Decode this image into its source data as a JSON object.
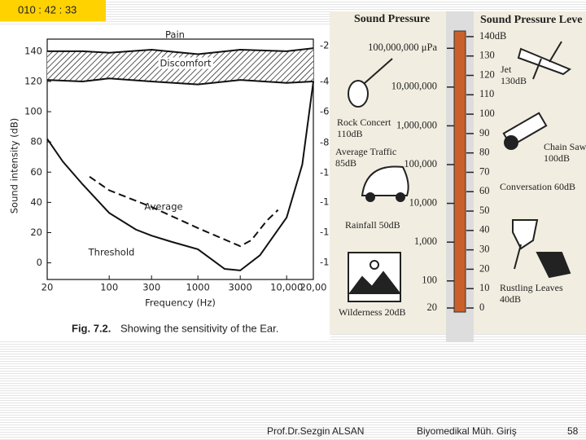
{
  "timer": "010 : 42 : 33",
  "chart_data": {
    "type": "line",
    "ylabel": "Sound intensity (dB)",
    "xlabel": "Frequency (Hz)",
    "caption_label": "Fig. 7.2.",
    "caption": "Showing the sensitivity of the Ear.",
    "log_x": true,
    "xlim": [
      20,
      20000
    ],
    "xticks": [
      20,
      100,
      300,
      1000,
      3000,
      {
        "value": 10000,
        "label": "10,000"
      },
      {
        "value": 20000,
        "label": "20,00"
      }
    ],
    "ylim": [
      -11,
      148
    ],
    "yticks": [
      0,
      20,
      40,
      60,
      80,
      100,
      120,
      140
    ],
    "right_axis_labels": [
      "-2",
      "-4",
      "-6",
      "-8",
      "-1",
      "-1",
      "-1",
      "-1"
    ],
    "series": [
      {
        "name": "Pain",
        "color": "#111",
        "fill": "hatch",
        "x": [
          20,
          50,
          100,
          300,
          1000,
          3000,
          10000,
          20000
        ],
        "values": [
          140,
          140,
          139,
          141,
          138,
          141,
          140,
          142
        ]
      },
      {
        "name": "Discomfort",
        "color": "#111",
        "x": [
          20,
          50,
          100,
          300,
          1000,
          3000,
          10000,
          20000
        ],
        "values": [
          121,
          120,
          122,
          120,
          118,
          121,
          119,
          120
        ]
      },
      {
        "name": "Average",
        "color": "#111",
        "style": "dashed",
        "x": [
          60,
          100,
          300,
          1000,
          3000,
          4000,
          6000,
          8000
        ],
        "values": [
          57,
          48,
          37,
          23,
          11,
          15,
          28,
          35
        ]
      },
      {
        "name": "Threshold",
        "color": "#111",
        "x": [
          20,
          30,
          50,
          100,
          200,
          300,
          500,
          1000,
          2000,
          3000,
          5000,
          10000,
          15000,
          20000
        ],
        "values": [
          82,
          67,
          52,
          33,
          22,
          18,
          14,
          9,
          -4,
          -5,
          5,
          30,
          65,
          120
        ]
      }
    ]
  },
  "scale": {
    "title_left": "Sound Pressure",
    "title_right": "Sound Pressure Leve",
    "db_ticks": [
      {
        "value": 140,
        "label": "140dB"
      },
      130,
      120,
      110,
      100,
      90,
      80,
      70,
      60,
      50,
      40,
      30,
      20,
      10,
      0
    ],
    "pressure_ticks": [
      {
        "value": 100000000,
        "label": "100,000,000 μPa"
      },
      {
        "value": 10000000,
        "label": "10,000,000"
      },
      {
        "value": 1000000,
        "label": "1,000,000"
      },
      {
        "value": 100000,
        "label": "100,000"
      },
      {
        "value": 10000,
        "label": "10,000"
      },
      {
        "value": 1000,
        "label": "1,000"
      },
      100,
      20
    ],
    "items": [
      [
        "Jet",
        "130dB"
      ],
      [
        "Rock Concert",
        "110dB"
      ],
      [
        "Average Traffic",
        "85dB"
      ],
      [
        "Chain Saw",
        "100dB"
      ],
      [
        "Conversation 60dB"
      ],
      [
        "Rainfall 50dB"
      ],
      [
        "Rustling Leaves",
        "40dB"
      ],
      [
        "Wilderness 20dB"
      ]
    ]
  },
  "footer": {
    "author": "Prof.Dr.Sezgin ALSAN",
    "course": "Biyomedikal Müh. Giriş",
    "page": "58"
  }
}
